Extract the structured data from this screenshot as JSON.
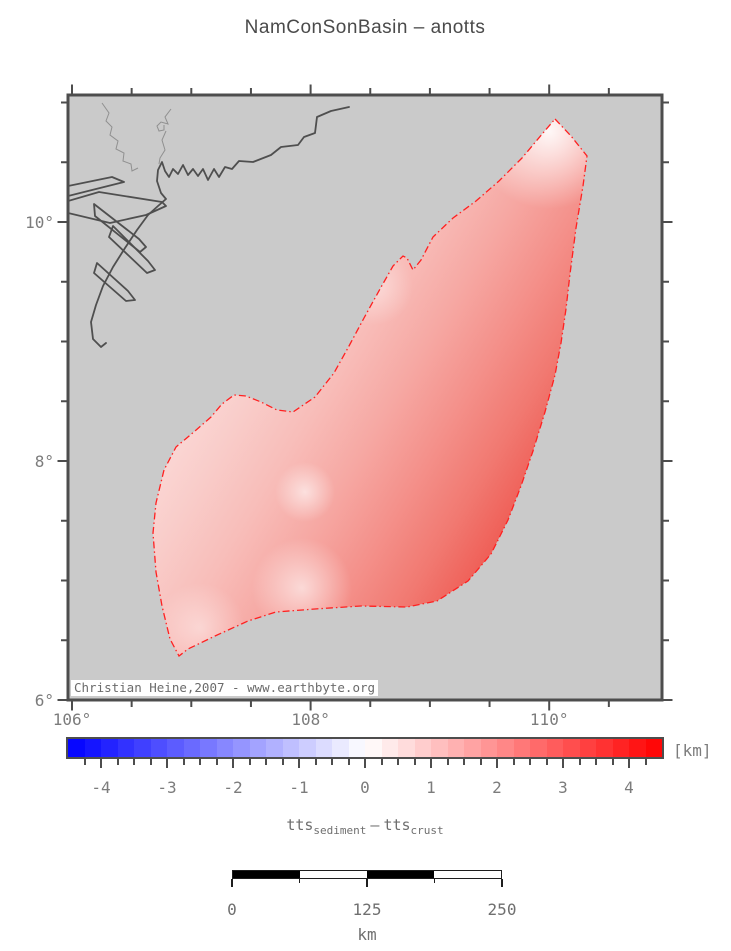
{
  "title": "NamConSonBasin – anotts",
  "map": {
    "background_color": "#cacaca",
    "frame_color": "#4d4d4d",
    "coastline_color": "#4f4f4f",
    "river_color": "#909090",
    "attribution": "Christian Heine,2007 - www.earthbyte.org",
    "x_axis": {
      "major_values": [
        106,
        108,
        110
      ],
      "tick_labels": [
        "106°",
        "108°",
        "110°"
      ],
      "minor_step": 0.5,
      "lon_min": 105.9665,
      "lon_max": 110.9455
    },
    "y_axis": {
      "major_values": [
        6,
        8,
        10
      ],
      "tick_labels": [
        "6°",
        "8°",
        "10°"
      ],
      "minor_step": 0.5,
      "lat_min": 6.0,
      "lat_max": 11.0628
    },
    "basin": {
      "name": "Nam Con Son Basin",
      "outline_color": "#ff2020",
      "fill_light_color": "#fdf0ee",
      "fill_dark_color": "#ee4f46"
    }
  },
  "colorbar": {
    "min": -4.5,
    "max": 4.5,
    "band_step": 0.25,
    "major_tick_values": [
      -4,
      -3,
      -2,
      -1,
      0,
      1,
      2,
      3,
      4
    ],
    "tick_labels": [
      "-4",
      "-3",
      "-2",
      "-1",
      "0",
      "1",
      "2",
      "3",
      "4"
    ],
    "minor_tick_step": 0.25,
    "unit_label": "[km]",
    "negative_end_color": "#0000ff",
    "center_color": "#ffffff",
    "positive_end_color": "#ff0000"
  },
  "subtitle": {
    "term1_base": "tts",
    "term1_sub": "sediment",
    "operator": "–",
    "term2_base": "tts",
    "term2_sub": "crust"
  },
  "scalebar": {
    "tick_labels": [
      "0",
      "125",
      "250"
    ],
    "unit": "km",
    "length_km": 250,
    "segment_count": 4,
    "segment_colors": [
      "#000000",
      "#ffffff"
    ]
  }
}
